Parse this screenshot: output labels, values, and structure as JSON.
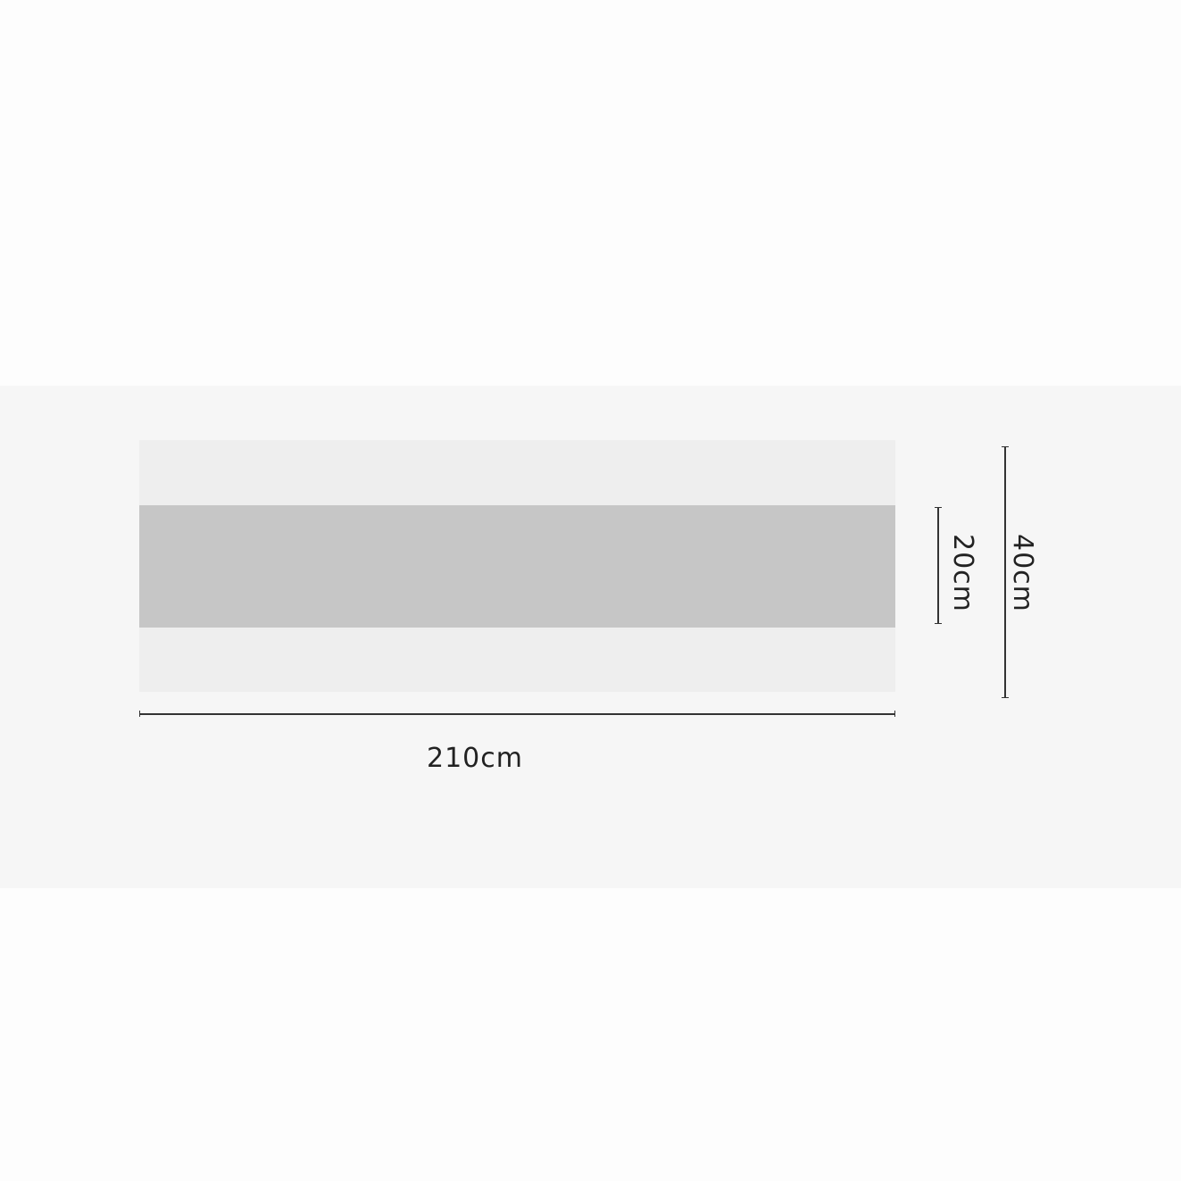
{
  "dimensions": {
    "length": "210cm",
    "band_width": "20cm",
    "total_width": "40cm"
  },
  "colors": {
    "background": "#fdfdfd",
    "panel": "#f6f6f6",
    "runner_light": "#eeeeee",
    "runner_band": "#c6c6c6",
    "lines": "#333333"
  }
}
